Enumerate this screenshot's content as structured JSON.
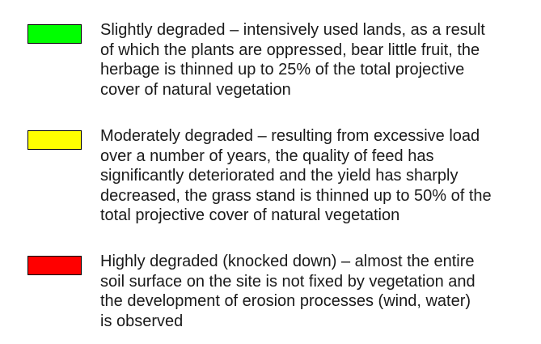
{
  "legend": {
    "items": [
      {
        "color": "#00ff00",
        "lines": [
          "Slightly degraded – intensively used lands, as a result",
          "of which the plants are oppressed, bear little fruit, the",
          "herbage is thinned up to 25% of the total projective",
          "cover of natural vegetation"
        ]
      },
      {
        "color": "#ffff00",
        "lines": [
          "Moderately degraded – resulting from excessive load",
          "over a number of years, the quality of feed has",
          "significantly deteriorated and the yield has sharply",
          "decreased, the grass stand is thinned up to 50% of the",
          "total projective cover of natural vegetation"
        ]
      },
      {
        "color": "#ff0000",
        "lines": [
          "Highly degraded (knocked down) – almost the entire",
          "soil surface on the site is not fixed by vegetation and",
          "the development of erosion processes (wind, water)",
          "is observed"
        ]
      }
    ]
  }
}
